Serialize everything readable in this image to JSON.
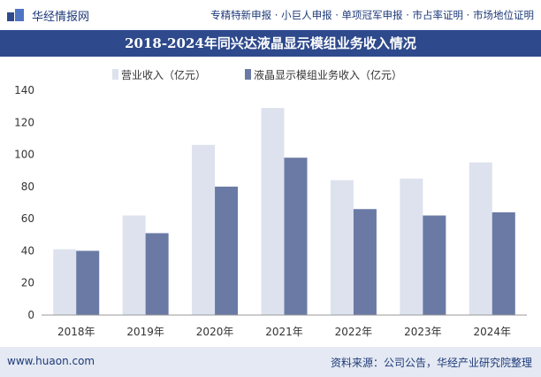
{
  "header": {
    "brand": "华经情报网",
    "services": "专精特新申报 · 小巨人申报 · 单项冠军申报 · 市占率证明 · 市场地位证明"
  },
  "colors": {
    "title_bg": "#2e4a8c",
    "series_light": "#dde2ee",
    "series_dark": "#6a7aa5",
    "footer_bg": "#e4e9f3"
  },
  "chart_data": {
    "type": "bar",
    "title": "2018-2024年同兴达液晶显示模组业务收入情况",
    "categories": [
      "2018年",
      "2019年",
      "2020年",
      "2021年",
      "2022年",
      "2023年",
      "2024年"
    ],
    "series": [
      {
        "name": "营业收入（亿元）",
        "values": [
          41,
          62,
          106,
          129,
          84,
          85,
          95
        ]
      },
      {
        "name": "液晶显示模组业务收入（亿元）",
        "values": [
          40,
          51,
          80,
          98,
          66,
          62,
          64
        ]
      }
    ],
    "yticks": [
      0,
      20,
      40,
      60,
      80,
      100,
      120,
      140
    ],
    "ylim": [
      0,
      140
    ],
    "grid": false,
    "legend": "top"
  },
  "footer": {
    "site": "www.huaon.com",
    "source": "资料来源：公司公告，华经产业研究院整理"
  }
}
